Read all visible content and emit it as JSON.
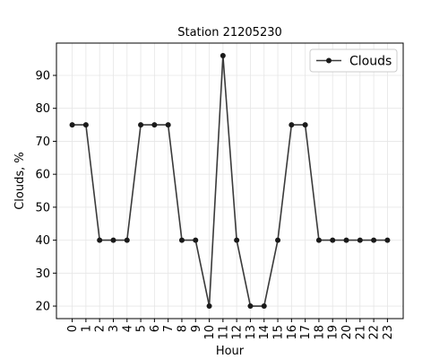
{
  "chart_data": {
    "type": "line",
    "title": "Station 21205230",
    "xlabel": "Hour",
    "ylabel": "Clouds, %",
    "categories": [
      "0",
      "1",
      "2",
      "3",
      "4",
      "5",
      "6",
      "7",
      "8",
      "9",
      "10",
      "11",
      "12",
      "13",
      "14",
      "15",
      "16",
      "17",
      "18",
      "19",
      "20",
      "21",
      "22",
      "23"
    ],
    "series": [
      {
        "name": "Clouds",
        "values": [
          75,
          75,
          40,
          40,
          40,
          75,
          75,
          75,
          40,
          40,
          20,
          96,
          40,
          20,
          20,
          40,
          75,
          75,
          40,
          40,
          40,
          40,
          40,
          40
        ]
      }
    ],
    "yticks": [
      20,
      30,
      40,
      50,
      60,
      70,
      80,
      90
    ],
    "ylim": [
      16.2,
      99.8
    ],
    "xlim": [
      -1.15,
      24.15
    ],
    "grid": true,
    "legend_position": "top-right",
    "colors": {
      "line": "#3a3a3a",
      "marker": "#1a1a1a",
      "grid": "#e6e6e6"
    }
  }
}
